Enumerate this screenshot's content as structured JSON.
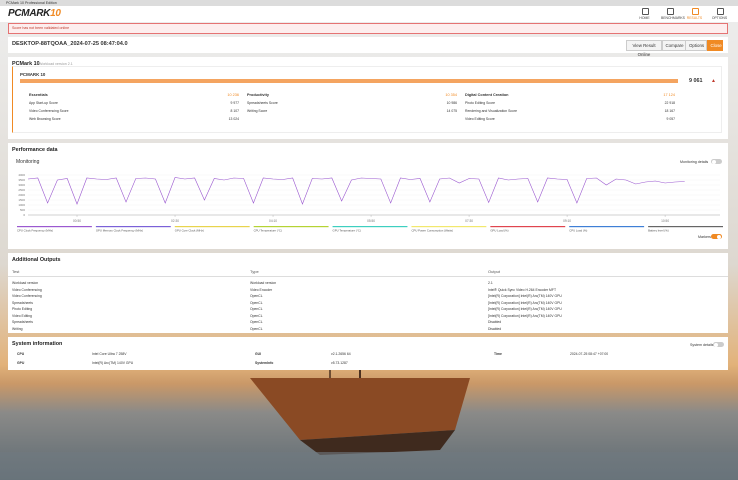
{
  "window_title": "PCMark 10 Professional Edition",
  "logo": {
    "name": "PCMARK",
    "version": "10"
  },
  "nav": [
    "HOME",
    "BENCHMARKS",
    "RESULTS",
    "OPTIONS"
  ],
  "warning": "Score has not been validated online",
  "result": {
    "name": "DESKTOP-88TQOAA_2024-07-25 08:47:04.0",
    "buttons": [
      "View Result Online",
      "Compare",
      "Options",
      "Close"
    ]
  },
  "benchmark": {
    "title": "PCMark 10",
    "workload": "Workload version 2.1",
    "card_title": "PCMARK 10",
    "score": "9 061",
    "groups": [
      {
        "name": "Essentials",
        "score": "10 236",
        "tests": [
          {
            "name": "App Start-up Score",
            "score": "9 977"
          },
          {
            "name": "Video Conferencing Score",
            "score": "8 107"
          },
          {
            "name": "Web Browsing Score",
            "score": "13 024"
          }
        ]
      },
      {
        "name": "Productivity",
        "score": "10 354",
        "tests": [
          {
            "name": "Spreadsheets Score",
            "score": "10 986"
          },
          {
            "name": "Writing Score",
            "score": "14 075"
          }
        ]
      },
      {
        "name": "Digital Content Creation",
        "score": "17 124",
        "tests": [
          {
            "name": "Photo Editing Score",
            "score": "22 918"
          },
          {
            "name": "Rendering and Visualization Score",
            "score": "18 167"
          },
          {
            "name": "Video Editing Score",
            "score": "9 057"
          }
        ]
      }
    ]
  },
  "performance": {
    "title": "Performance data",
    "monitoring": "Monitoring",
    "details": "Monitoring details",
    "markers": "Markers"
  },
  "chart_data": {
    "type": "line",
    "x": [
      0,
      10,
      20,
      30,
      40,
      50,
      60,
      70,
      80,
      90,
      100,
      110,
      120,
      130,
      140,
      150,
      160,
      170,
      180,
      190,
      200,
      210,
      220,
      230,
      240,
      250,
      260,
      270,
      280,
      290,
      300,
      310,
      320,
      330,
      340,
      350,
      360,
      370,
      380,
      390,
      400,
      410,
      420,
      430,
      440,
      450,
      460,
      470,
      480,
      490,
      500,
      510,
      520,
      530,
      540,
      550,
      560,
      570,
      580,
      590,
      600,
      610,
      620,
      630,
      640,
      650,
      660,
      670
    ],
    "series": [
      {
        "name": "CPU Clock Frequency (MHz)",
        "color": "#9b59d0",
        "values": [
          3600,
          3700,
          1200,
          3500,
          3650,
          1100,
          3700,
          3600,
          3550,
          3700,
          1300,
          3650,
          3700,
          3600,
          1200,
          3750,
          3600,
          3700,
          1500,
          3650,
          3500,
          3700,
          3650,
          1200,
          3700,
          3600,
          3550,
          3700,
          1100,
          3650,
          3600,
          3700,
          1400,
          3500,
          3700,
          3650,
          3600,
          1200,
          3700,
          3550,
          3650,
          1300,
          3600,
          3700,
          3200,
          3650,
          3600,
          1250,
          3700,
          3500,
          3600,
          3650,
          1300,
          3700,
          3600,
          3550,
          1200,
          3650,
          3700,
          3000,
          3600,
          3500,
          3100,
          3300,
          3400,
          3200,
          3300,
          3350
        ]
      }
    ],
    "legend_items": [
      {
        "name": "GPU Memory Clock Frequency (MHz)",
        "color": "#7b61d8"
      },
      {
        "name": "GPU Core Clock (MHz)",
        "color": "#e8d44d"
      },
      {
        "name": "CPU Temperature (°C)",
        "color": "#b5d334"
      },
      {
        "name": "GPU Temperature (°C)",
        "color": "#3ecfc0"
      },
      {
        "name": "CPU Power Consumption (Watts)",
        "color": "#f2e86d"
      },
      {
        "name": "GPU Load (%)",
        "color": "#e0454f"
      },
      {
        "name": "CPU Load (%)",
        "color": "#3f7fd6"
      },
      {
        "name": "Battery level (%)",
        "color": "#666666"
      }
    ],
    "xlim": [
      0,
      706
    ],
    "xticks": [
      {
        "value": 50,
        "label": "00:50"
      },
      {
        "value": 150,
        "label": "02:30"
      },
      {
        "value": 250,
        "label": "04:10"
      },
      {
        "value": 350,
        "label": "05:50"
      },
      {
        "value": 450,
        "label": "07:30"
      },
      {
        "value": 550,
        "label": "09:10"
      },
      {
        "value": 650,
        "label": "10:50"
      }
    ],
    "ylim": [
      0,
      4000
    ],
    "yticks": [
      0,
      500,
      1000,
      1500,
      2000,
      2500,
      3000,
      3500,
      4000
    ],
    "grid": true
  },
  "outputs": {
    "title": "Additional Outputs",
    "headers": [
      "Test",
      "Type",
      "Output"
    ],
    "rows": [
      [
        "Workload version",
        "Workload version",
        "2.1"
      ],
      [
        "Video Conferencing",
        "Video Encoder",
        "Intel® Quick Sync Video H.264 Encoder MFT"
      ],
      [
        "Video Conferencing",
        "OpenCL",
        "[Intel(R) Corporation] Intel(R) Arc(TM) 140V GPU"
      ],
      [
        "Spreadsheets",
        "OpenCL",
        "[Intel(R) Corporation] Intel(R) Arc(TM) 140V GPU"
      ],
      [
        "Photo Editing",
        "OpenCL",
        "[Intel(R) Corporation] Intel(R) Arc(TM) 140V GPU"
      ],
      [
        "Video Editing",
        "OpenCL",
        "[Intel(R) Corporation] Intel(R) Arc(TM) 140V GPU"
      ],
      [
        "Spreadsheets",
        "OpenCL",
        "Disabled"
      ],
      [
        "Writing",
        "OpenCL",
        "Disabled"
      ]
    ]
  },
  "system": {
    "title": "System information",
    "details": "System details",
    "items": [
      {
        "label": "CPU",
        "value": "Intel Core Ultra 7 258V"
      },
      {
        "label": "GPU",
        "value": "Intel(R) Arc(TM) 140V GPU"
      },
      {
        "label": "GUI",
        "value": "v2.1.2656 64"
      },
      {
        "label": "SystemInfo",
        "value": "v5.73.1287"
      },
      {
        "label": "Time",
        "value": "2024-07-25 08:47 +07:00"
      }
    ]
  }
}
